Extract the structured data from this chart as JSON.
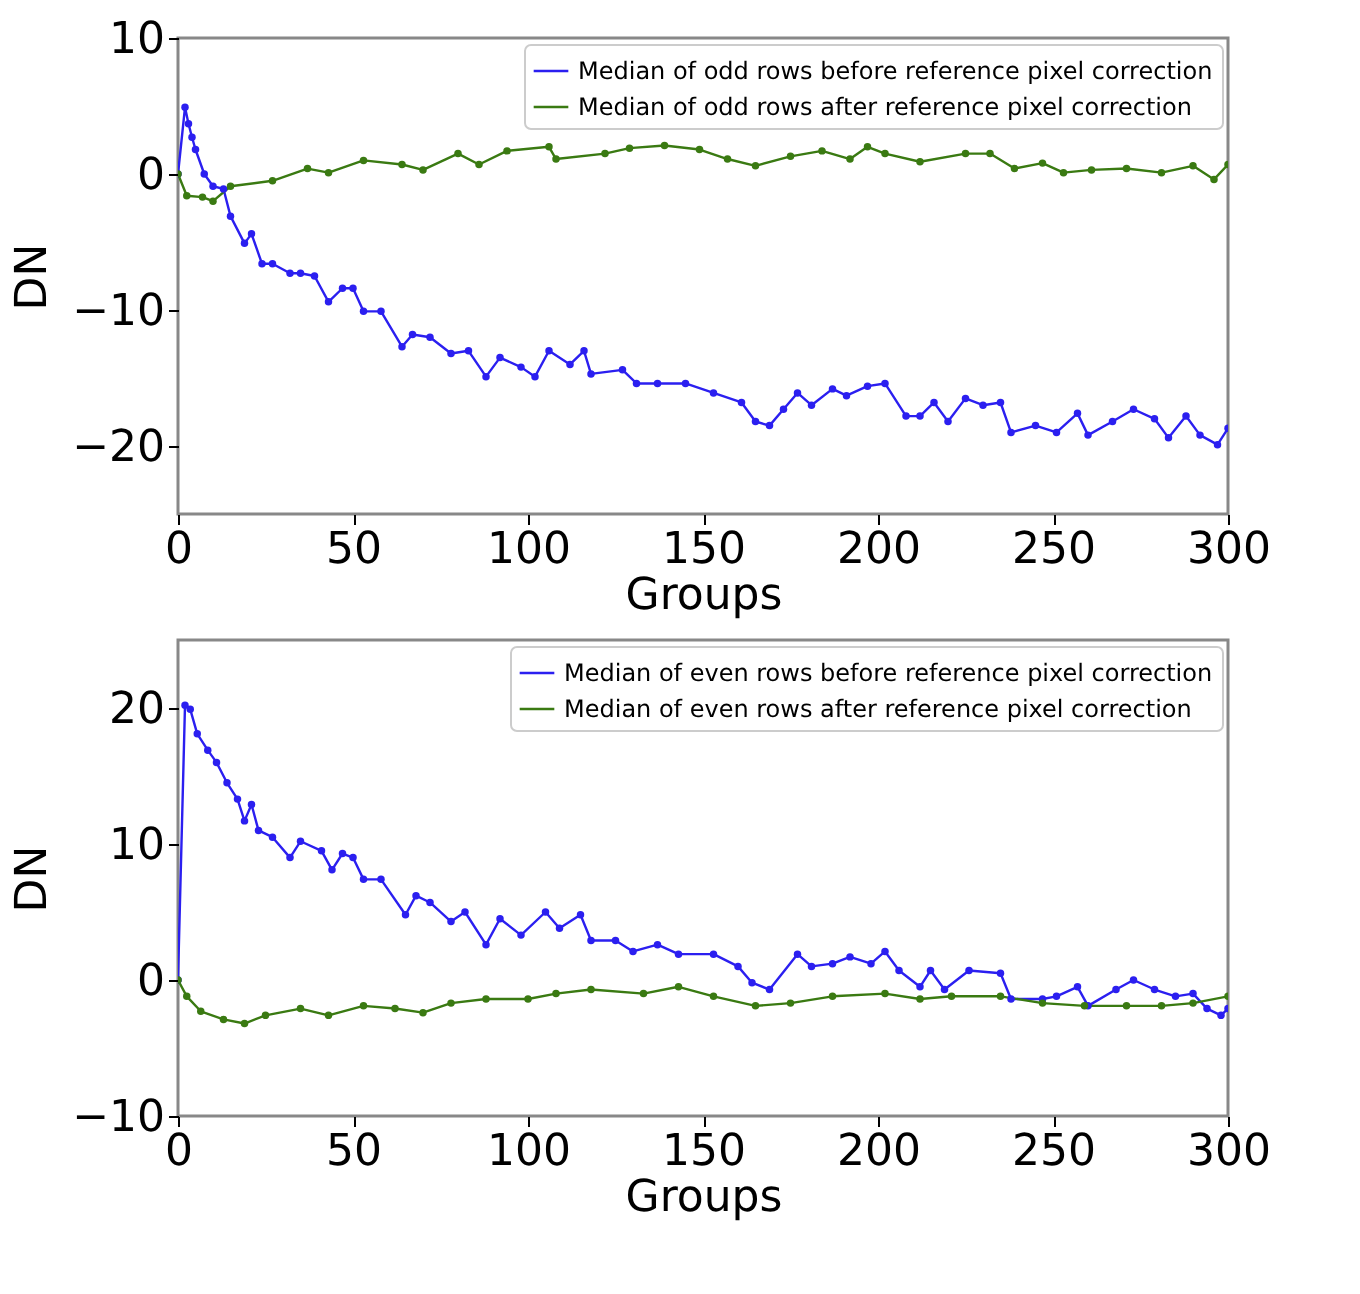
{
  "chart_data": [
    {
      "type": "line",
      "xlabel": "Groups",
      "ylabel": "DN",
      "xlim": [
        0,
        300
      ],
      "xticks": [
        0,
        50,
        100,
        150,
        200,
        250,
        300
      ],
      "ylim": [
        -25,
        10
      ],
      "yticks": [
        -20,
        -10,
        0,
        10
      ],
      "legend": "top right",
      "grid": false,
      "marker": "circle",
      "line_style": "solid",
      "series": [
        {
          "name": "Median of odd rows before reference pixel correction",
          "color": "#2b1ff0",
          "x": [
            0,
            2,
            3,
            4,
            5,
            7.5,
            10,
            13,
            15,
            19,
            21,
            24,
            27,
            32,
            35,
            39,
            43,
            47,
            50,
            53,
            58,
            64,
            67,
            72,
            78,
            83,
            88,
            92,
            98,
            102,
            106,
            112,
            116,
            118,
            127,
            131,
            137,
            145,
            153,
            161,
            165,
            169,
            173,
            177,
            181,
            187,
            191,
            197,
            202,
            208,
            212,
            216,
            220,
            225,
            230,
            235,
            238,
            245,
            251,
            257,
            260,
            267,
            273,
            279,
            283,
            288,
            292,
            297,
            300
          ],
          "values": [
            0,
            4.9,
            3.7,
            2.7,
            1.8,
            0,
            -0.9,
            -1.1,
            -3.1,
            -5.1,
            -4.4,
            -6.6,
            -6.6,
            -7.3,
            -7.3,
            -7.5,
            -9.4,
            -8.4,
            -8.4,
            -10.1,
            -10.1,
            -12.7,
            -11.8,
            -12,
            -13.2,
            -13,
            -14.9,
            -13.5,
            -14.2,
            -14.9,
            -13,
            -14,
            -13,
            -14.7,
            -14.4,
            -15.4,
            -15.4,
            -15.4,
            -16.1,
            -16.8,
            -18.2,
            -18.5,
            -17.3,
            -16.1,
            -17,
            -15.8,
            -16.3,
            -15.6,
            -15.4,
            -17.8,
            -17.8,
            -16.8,
            -18.2,
            -16.5,
            -17,
            -16.8,
            -19,
            -18.5,
            -19,
            -17.6,
            -19.2,
            -18.2,
            -17.3,
            -18,
            -19.4,
            -17.8,
            -19.2,
            -19.9,
            -18.7
          ]
        },
        {
          "name": "Median of odd rows after reference pixel correction",
          "color": "#3a7a12",
          "x": [
            0,
            2.5,
            7,
            10,
            15,
            27,
            37,
            43,
            53,
            64,
            70,
            80,
            86,
            94,
            106,
            108,
            122,
            129,
            139,
            149,
            157,
            165,
            175,
            184,
            192,
            197,
            202,
            212,
            225,
            232,
            239,
            247,
            253,
            261,
            271,
            281,
            290,
            296,
            300
          ],
          "values": [
            0,
            -1.6,
            -1.7,
            -2,
            -0.9,
            -0.5,
            0.4,
            0.1,
            1,
            0.7,
            0.3,
            1.5,
            0.7,
            1.7,
            2,
            1.1,
            1.5,
            1.9,
            2.1,
            1.8,
            1.1,
            0.6,
            1.3,
            1.7,
            1.1,
            2,
            1.5,
            0.9,
            1.5,
            1.5,
            0.4,
            0.8,
            0.1,
            0.3,
            0.4,
            0.1,
            0.6,
            -0.4,
            0.7
          ]
        }
      ]
    },
    {
      "type": "line",
      "xlabel": "Groups",
      "ylabel": "DN",
      "xlim": [
        0,
        300
      ],
      "xticks": [
        0,
        50,
        100,
        150,
        200,
        250,
        300
      ],
      "ylim": [
        -10,
        25
      ],
      "yticks": [
        -10,
        0,
        10,
        20
      ],
      "legend": "top right",
      "grid": false,
      "marker": "circle",
      "line_style": "solid",
      "series": [
        {
          "name": "Median of even rows before reference pixel correction",
          "color": "#2b1ff0",
          "x": [
            0,
            2,
            3.5,
            5.5,
            8.5,
            11,
            14,
            17,
            19,
            21,
            23,
            27,
            32,
            35,
            41,
            44,
            47,
            50,
            53,
            58,
            65,
            68,
            72,
            78,
            82,
            88,
            92,
            98,
            105,
            109,
            115,
            118,
            125,
            130,
            137,
            143,
            153,
            160,
            164,
            169,
            177,
            181,
            187,
            192,
            198,
            202,
            206,
            212,
            215,
            219,
            226,
            235,
            238,
            247,
            251,
            257,
            260,
            268,
            273,
            279,
            285,
            290,
            294,
            298,
            300
          ],
          "values": [
            0,
            20.2,
            19.9,
            18.1,
            16.9,
            16,
            14.5,
            13.3,
            11.7,
            12.9,
            11,
            10.5,
            9,
            10.2,
            9.5,
            8.1,
            9.3,
            9,
            7.4,
            7.4,
            4.8,
            6.2,
            5.7,
            4.3,
            5,
            2.6,
            4.5,
            3.3,
            5,
            3.8,
            4.8,
            2.9,
            2.9,
            2.1,
            2.6,
            1.9,
            1.9,
            1,
            -0.2,
            -0.7,
            1.9,
            1,
            1.2,
            1.7,
            1.2,
            2.1,
            0.7,
            -0.5,
            0.7,
            -0.7,
            0.7,
            0.5,
            -1.4,
            -1.4,
            -1.2,
            -0.5,
            -1.9,
            -0.7,
            0,
            -0.7,
            -1.2,
            -1,
            -2.1,
            -2.6,
            -2.1
          ]
        },
        {
          "name": "Median of even rows after reference pixel correction",
          "color": "#3a7a12",
          "x": [
            0,
            2.5,
            6.5,
            13,
            19,
            25,
            35,
            43,
            53,
            62,
            70,
            78,
            88,
            100,
            108,
            118,
            133,
            143,
            153,
            165,
            175,
            187,
            202,
            212,
            221,
            235,
            247,
            259,
            271,
            281,
            290,
            300
          ],
          "values": [
            0,
            -1.2,
            -2.3,
            -2.9,
            -3.2,
            -2.6,
            -2.1,
            -2.6,
            -1.9,
            -2.1,
            -2.4,
            -1.7,
            -1.4,
            -1.4,
            -1,
            -0.7,
            -1,
            -0.5,
            -1.2,
            -1.9,
            -1.7,
            -1.2,
            -1,
            -1.4,
            -1.2,
            -1.2,
            -1.7,
            -1.9,
            -1.9,
            -1.9,
            -1.7,
            -1.2
          ]
        }
      ]
    }
  ]
}
